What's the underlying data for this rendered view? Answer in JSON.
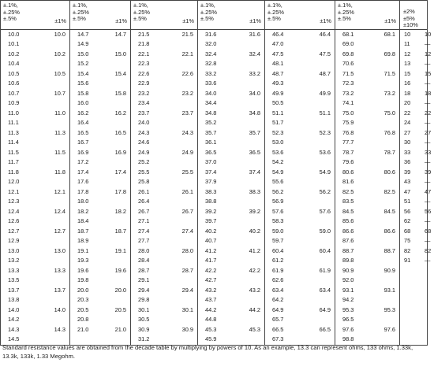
{
  "table": {
    "headers": [
      {
        "lines": [
          "±.1%,",
          "±.25%",
          "±.5%"
        ],
        "sub": "±1%"
      },
      {
        "lines": [
          "±.1%,",
          "±.25%",
          "±.5%"
        ],
        "sub": "±1%"
      },
      {
        "lines": [
          "±.1%,",
          "±.25%",
          "±.5%"
        ],
        "sub": "±1%"
      },
      {
        "lines": [
          "±.1%,",
          "±.25%",
          "±.5%"
        ],
        "sub": "±1%"
      },
      {
        "lines": [
          "±.1%,",
          "±.25%",
          "±.5%"
        ],
        "sub": "±1%"
      },
      {
        "lines": [
          "±.1%,",
          "±.25%",
          "±.5%"
        ],
        "sub": "±1%"
      }
    ],
    "last_header": {
      "line1": "±2%",
      "a": "±5%",
      "b": "±10%"
    },
    "columns": [
      {
        "a": [
          "10.0",
          "10.1",
          "10.2",
          "10.4",
          "10.5",
          "10.6",
          "10.7",
          "10.9",
          "11.0",
          "11.1",
          "11.3",
          "11.4",
          "11.5",
          "11.7",
          "11.8",
          "12.0",
          "12.1",
          "12.3",
          "12.4",
          "12.6",
          "12.7",
          "12.9",
          "13.0",
          "13.2",
          "13.3",
          "13.5",
          "13.7",
          "13.8",
          "14.0",
          "14.2",
          "14.3",
          "14.5"
        ],
        "b": [
          "10.0",
          "",
          "10.2",
          "",
          "10.5",
          "",
          "10.7",
          "",
          "11.0",
          "",
          "11.3",
          "",
          "11.5",
          "",
          "11.8",
          "",
          "12.1",
          "",
          "12.4",
          "",
          "12.7",
          "",
          "13.0",
          "",
          "13.3",
          "",
          "13.7",
          "",
          "14.0",
          "",
          "14.3",
          ""
        ]
      },
      {
        "a": [
          "14.7",
          "14.9",
          "15.0",
          "15.2",
          "15.4",
          "15.6",
          "15.8",
          "16.0",
          "16.2",
          "16.4",
          "16.5",
          "16.7",
          "16.9",
          "17.2",
          "17.4",
          "17.6",
          "17.8",
          "18.0",
          "18.2",
          "18.4",
          "18.7",
          "18.9",
          "19.1",
          "19.3",
          "19.6",
          "19.8",
          "20.0",
          "20.3",
          "20.5",
          "20.8",
          "21.0"
        ],
        "b": [
          "14.7",
          "",
          "15.0",
          "",
          "15.4",
          "",
          "15.8",
          "",
          "16.2",
          "",
          "16.5",
          "",
          "16.9",
          "",
          "17.4",
          "",
          "17.8",
          "",
          "18.2",
          "",
          "18.7",
          "",
          "19.1",
          "",
          "19.6",
          "",
          "20.0",
          "",
          "20.5",
          "",
          "21.0"
        ]
      },
      {
        "a": [
          "21.5",
          "21.8",
          "22.1",
          "22.3",
          "22.6",
          "22.9",
          "23.2",
          "23.4",
          "23.7",
          "24.0",
          "24.3",
          "24.6",
          "24.9",
          "25.2",
          "25.5",
          "25.8",
          "26.1",
          "26.4",
          "26.7",
          "27.1",
          "27.4",
          "27.7",
          "28.0",
          "28.4",
          "28.7",
          "29.1",
          "29.4",
          "29.8",
          "30.1",
          "30.5",
          "30.9",
          "31.2"
        ],
        "b": [
          "21.5",
          "",
          "22.1",
          "",
          "22.6",
          "",
          "23.2",
          "",
          "23.7",
          "",
          "24.3",
          "",
          "24.9",
          "",
          "25.5",
          "",
          "26.1",
          "",
          "26.7",
          "",
          "27.4",
          "",
          "28.0",
          "",
          "28.7",
          "",
          "29.4",
          "",
          "30.1",
          "",
          "30.9",
          ""
        ]
      },
      {
        "a": [
          "31.6",
          "32.0",
          "32.4",
          "32.8",
          "33.2",
          "33.6",
          "34.0",
          "34.4",
          "34.8",
          "35.2",
          "35.7",
          "36.1",
          "36.5",
          "37.0",
          "37.4",
          "37.9",
          "38.3",
          "38.8",
          "39.2",
          "39.7",
          "40.2",
          "40.7",
          "41.2",
          "41.7",
          "42.2",
          "42.7",
          "43.2",
          "43.7",
          "44.2",
          "44.8",
          "45.3",
          "45.9"
        ],
        "b": [
          "31.6",
          "",
          "32.4",
          "",
          "33.2",
          "",
          "34.0",
          "",
          "34.8",
          "",
          "35.7",
          "",
          "36.5",
          "",
          "37.4",
          "",
          "38.3",
          "",
          "39.2",
          "",
          "40.2",
          "",
          "41.2",
          "",
          "42.2",
          "",
          "43.2",
          "",
          "44.2",
          "",
          "45.3",
          ""
        ]
      },
      {
        "a": [
          "46.4",
          "47.0",
          "47.5",
          "48.1",
          "48.7",
          "49.3",
          "49.9",
          "50.5",
          "51.1",
          "51.7",
          "52.3",
          "53.0",
          "53.6",
          "54.2",
          "54.9",
          "55.6",
          "56.2",
          "56.9",
          "57.6",
          "58.3",
          "59.0",
          "59.7",
          "60.4",
          "61.2",
          "61.9",
          "62.6",
          "63.4",
          "64.2",
          "64.9",
          "65.7",
          "66.5",
          "67.3"
        ],
        "b": [
          "46.4",
          "",
          "47.5",
          "",
          "48.7",
          "",
          "49.9",
          "",
          "51.1",
          "",
          "52.3",
          "",
          "53.6",
          "",
          "54.9",
          "",
          "56.2",
          "",
          "57.6",
          "",
          "59.0",
          "",
          "60.4",
          "",
          "61.9",
          "",
          "63.4",
          "",
          "64.9",
          "",
          "66.5",
          ""
        ]
      },
      {
        "a": [
          "68.1",
          "69.0",
          "69.8",
          "70.6",
          "71.5",
          "72.3",
          "73.2",
          "74.1",
          "75.0",
          "75.9",
          "76.8",
          "77.7",
          "78.7",
          "79.6",
          "80.6",
          "81.6",
          "82.5",
          "83.5",
          "84.5",
          "85.6",
          "86.6",
          "87.6",
          "88.7",
          "89.8",
          "90.9",
          "92.0",
          "93.1",
          "94.2",
          "95.3",
          "96.5",
          "97.6",
          "98.8"
        ],
        "b": [
          "68.1",
          "",
          "69.8",
          "",
          "71.5",
          "",
          "73.2",
          "",
          "75.0",
          "",
          "76.8",
          "",
          "78.7",
          "",
          "80.6",
          "",
          "82.5",
          "",
          "84.5",
          "",
          "86.6",
          "",
          "88.7",
          "",
          "90.9",
          "",
          "93.1",
          "",
          "95.3",
          "",
          "97.6",
          ""
        ]
      }
    ],
    "last_column": {
      "a": [
        "10",
        "11",
        "12",
        "13",
        "15",
        "16",
        "18",
        "20",
        "22",
        "24",
        "27",
        "30",
        "33",
        "36",
        "39",
        "43",
        "47",
        "51",
        "56",
        "62",
        "68",
        "75",
        "82",
        "91"
      ],
      "b": [
        "10",
        "—",
        "12",
        "—",
        "15",
        "—",
        "18",
        "—",
        "22",
        "—",
        "27",
        "—",
        "33",
        "—",
        "39",
        "—",
        "47",
        "—",
        "56",
        "—",
        "68",
        "—",
        "82",
        "—"
      ]
    }
  },
  "footnote": "Standard resistance values are obtained from the decade table by multiplying by powers of 10. As an example, 13.3 can represent ohms, 133 ohms, 1.33k, 13.3k, 133k, 1.33 Megohm."
}
